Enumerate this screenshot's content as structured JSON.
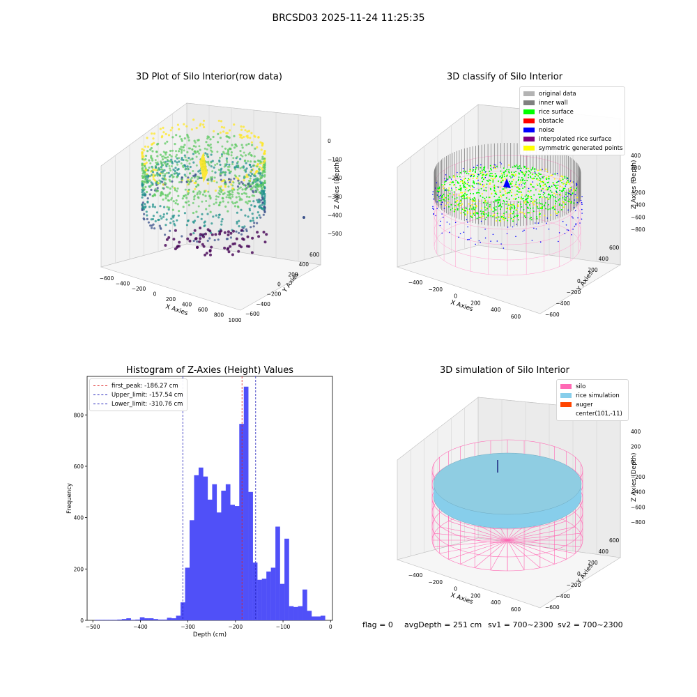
{
  "suptitle": "BRCSD03 2025-11-24 11:25:35",
  "status": {
    "flag": "flag = 0",
    "avg": "avgDepth = 251 cm",
    "sv1": "sv1 = 700~2300",
    "sv2": "sv2 = 700~2300"
  },
  "chart_data": [
    {
      "type": "scatter",
      "title": "3D Plot of Silo Interior(row data)",
      "xlabel": "X Axies",
      "ylabel": "Y Axies",
      "zlabel": "Z Axies (Depth)",
      "xticks": [
        "−600",
        "−400",
        "−200",
        "0",
        "200",
        "400",
        "600",
        "800",
        "1000"
      ],
      "yticks": [
        "−600",
        "−400",
        "−200",
        "0",
        "200",
        "400",
        "600"
      ],
      "zticks": [
        "0",
        "−100",
        "−200",
        "−300",
        "−400",
        "−500"
      ],
      "colormap": [
        "#440154",
        "#3b528b",
        "#21918c",
        "#5ec962",
        "#fde725"
      ]
    },
    {
      "type": "scatter",
      "title": "3D classify of Silo Interior",
      "xlabel": "X Axies",
      "ylabel": "Y Axies",
      "zlabel": "Z Axies (Depth)",
      "xticks": [
        "−400",
        "−200",
        "0",
        "200",
        "400",
        "600"
      ],
      "yticks": [
        "−600",
        "−400",
        "−200",
        "0",
        "200",
        "400",
        "600"
      ],
      "zticks": [
        "400",
        "200",
        "0",
        "−200",
        "−400",
        "−600",
        "−800"
      ],
      "legend": [
        {
          "label": "original data",
          "color": "#b3b3b3"
        },
        {
          "label": "inner wall",
          "color": "#808080"
        },
        {
          "label": "rice surface",
          "color": "#00ff00"
        },
        {
          "label": "obstacle",
          "color": "#ff0000"
        },
        {
          "label": "noise",
          "color": "#0000ff"
        },
        {
          "label": "interpolated rice surface",
          "color": "#800080"
        },
        {
          "label": "symmetric generated points",
          "color": "#ffff00"
        }
      ]
    },
    {
      "type": "bar",
      "title": "Histogram of Z-Axies (Height) Values",
      "xlabel": "Depth (cm)",
      "ylabel": "Frequency",
      "xlim": [
        -512,
        4
      ],
      "ylim": [
        0,
        950
      ],
      "xticks": [
        -500,
        -400,
        -300,
        -200,
        -100,
        0
      ],
      "xtick_labels": [
        "−500",
        "−400",
        "−300",
        "−200",
        "−100",
        "0"
      ],
      "yticks": [
        0,
        200,
        400,
        600,
        800
      ],
      "yticks_labels": [
        "0",
        "200",
        "400",
        "600",
        "800"
      ],
      "bar_color": "#5050f8",
      "bin_start": -496,
      "bin_width": 9.5,
      "values": [
        2,
        2,
        2,
        2,
        2,
        3,
        5,
        8,
        2,
        3,
        12,
        8,
        8,
        5,
        3,
        3,
        10,
        8,
        18,
        70,
        205,
        390,
        565,
        595,
        560,
        470,
        530,
        420,
        505,
        530,
        450,
        445,
        765,
        910,
        500,
        225,
        158,
        162,
        190,
        205,
        365,
        142,
        318,
        55,
        52,
        55,
        120,
        37,
        15,
        15,
        18
      ],
      "vlines": [
        {
          "label": "first_peak: -186.27 cm",
          "x": -186.27,
          "color": "#dd2222"
        },
        {
          "label": "Upper_limit: -157.54 cm",
          "x": -157.54,
          "color": "#2222bb"
        },
        {
          "label": "Lower_limit: -310.76 cm",
          "x": -310.76,
          "color": "#2222bb"
        }
      ]
    },
    {
      "type": "scatter",
      "title": "3D simulation of Silo Interior",
      "xlabel": "X Axies",
      "ylabel": "Y Axies",
      "zlabel": "Z Axies (Depth)",
      "xticks": [
        "−400",
        "−200",
        "0",
        "200",
        "400",
        "600"
      ],
      "yticks": [
        "−600",
        "−400",
        "−200",
        "0",
        "200",
        "400",
        "600"
      ],
      "zticks": [
        "400",
        "200",
        "0",
        "−200",
        "−400",
        "−600",
        "−800"
      ],
      "legend": [
        {
          "label": "silo",
          "color": "#ff69b4"
        },
        {
          "label": "rice simulation",
          "color": "#87ceeb"
        },
        {
          "label": "auger",
          "color": "#ff4500"
        },
        {
          "label": "center(101,-11)",
          "color": ""
        }
      ]
    }
  ]
}
